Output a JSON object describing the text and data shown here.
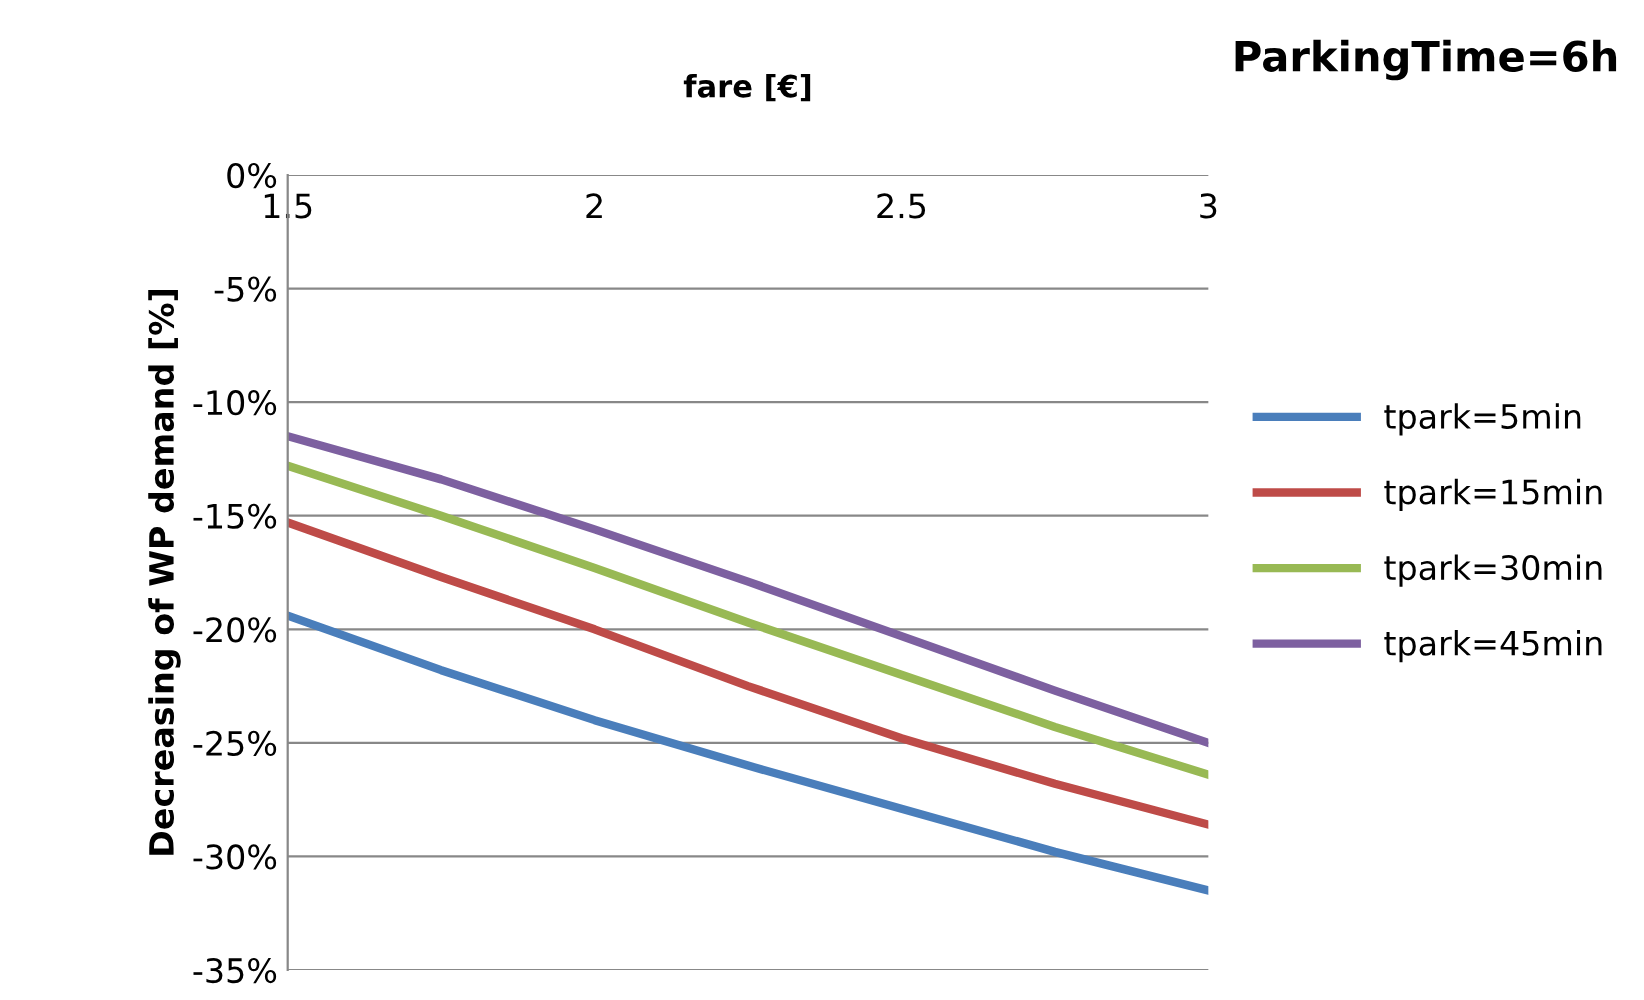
{
  "chart_data": {
    "type": "line",
    "title": "ParkingTime=6h",
    "xlabel": "fare [€]",
    "ylabel": "Decreasing of WP demand [%]",
    "x": [
      1.5,
      1.75,
      2,
      2.25,
      2.5,
      2.75,
      3
    ],
    "series": [
      {
        "name": "tpark=5min",
        "color": "#4a7ebb",
        "values": [
          -19.4,
          -21.8,
          -24.0,
          -26.0,
          -27.9,
          -29.8,
          -31.5
        ]
      },
      {
        "name": "tpark=15min",
        "color": "#be4b48",
        "values": [
          -15.3,
          -17.7,
          -20.0,
          -22.5,
          -24.8,
          -26.8,
          -28.6
        ]
      },
      {
        "name": "tpark=30min",
        "color": "#98b954",
        "values": [
          -12.8,
          -15.0,
          -17.3,
          -19.7,
          -22.0,
          -24.3,
          -26.4
        ]
      },
      {
        "name": "tpark=45min",
        "color": "#7d60a0",
        "values": [
          -11.5,
          -13.4,
          -15.6,
          -17.9,
          -20.3,
          -22.7,
          -25.0
        ]
      }
    ],
    "xlim": [
      1.5,
      3
    ],
    "xticks": [
      1.5,
      2,
      2.5,
      3
    ],
    "ylim": [
      -35,
      0
    ],
    "yticks": [
      {
        "value": 0,
        "label": "0%"
      },
      {
        "value": -5,
        "label": "-5%"
      },
      {
        "value": -10,
        "label": "-10%"
      },
      {
        "value": -15,
        "label": "-15%"
      },
      {
        "value": -20,
        "label": "-20%"
      },
      {
        "value": -25,
        "label": "-25%"
      },
      {
        "value": -30,
        "label": "-30%"
      },
      {
        "value": -35,
        "label": "-35%"
      }
    ],
    "grid": "y",
    "legend": "right",
    "marker": "none",
    "line_style": "solid"
  }
}
